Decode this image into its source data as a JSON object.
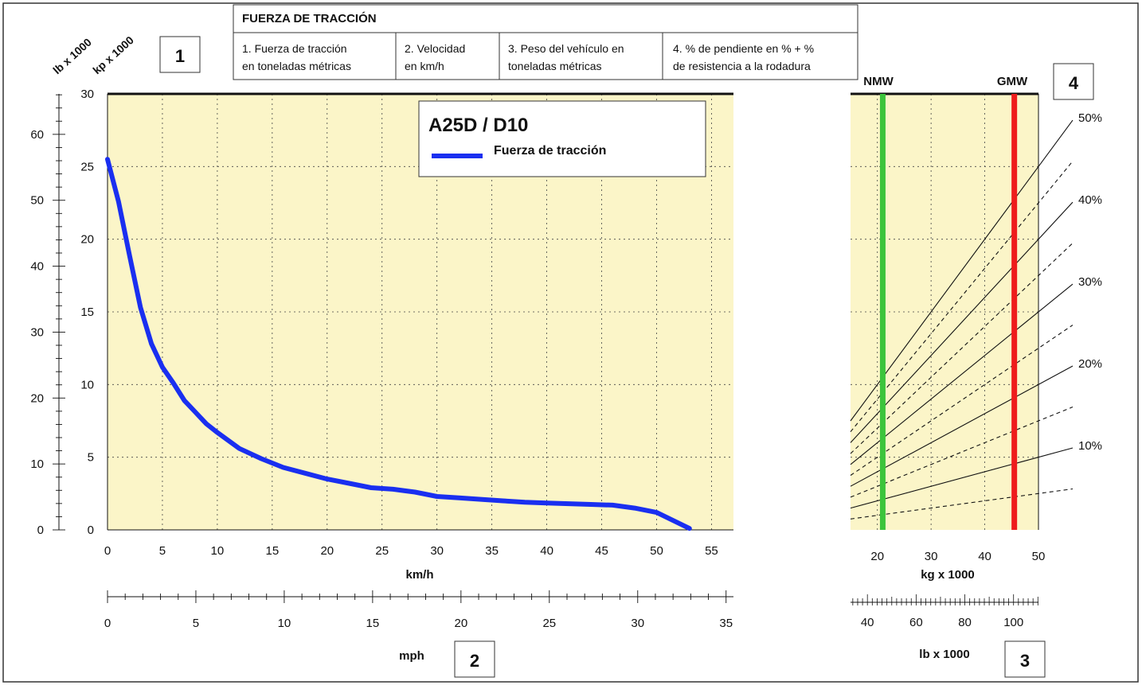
{
  "header": {
    "title": "FUERZA DE TRACCIÓN",
    "steps": [
      {
        "line1": "1. Fuerza de tracción",
        "line2": "en toneladas métricas"
      },
      {
        "line1": "2. Velocidad",
        "line2": "en km/h"
      },
      {
        "line1": "3. Peso del vehículo en",
        "line2": "toneladas métricas"
      },
      {
        "line1": "4. % de pendiente en % + %",
        "line2": "de resistencia a la rodadura"
      }
    ]
  },
  "badges": {
    "b1": "1",
    "b2": "2",
    "b3": "3",
    "b4": "4"
  },
  "axes_labels": {
    "lb": "lb x 1000",
    "kp": "kp x 1000",
    "kmh": "km/h",
    "mph": "mph",
    "kg": "kg x 1000",
    "lb_weight": "lb x 1000",
    "nmw": "NMW",
    "gmw": "GMW"
  },
  "legend": {
    "model": "A25D / D10",
    "series": "Fuerza de tracción",
    "color": "#1a2ff0"
  },
  "colors": {
    "background": "#fbf5c8",
    "nmw": "#3cc43c",
    "gmw": "#ee1c1c"
  },
  "chart_data": [
    {
      "type": "line",
      "title": "A25D / D10",
      "xlabel": "km/h",
      "ylabel": "kp x 1000",
      "xlim": [
        0,
        57
      ],
      "ylim": [
        0,
        30
      ],
      "x_ticks": [
        0,
        5,
        10,
        15,
        20,
        25,
        30,
        35,
        40,
        45,
        50,
        55
      ],
      "y_ticks": [
        0,
        5,
        10,
        15,
        20,
        25,
        30
      ],
      "y2_label": "lb x 1000",
      "y2_ticks": [
        0,
        10,
        20,
        30,
        40,
        50,
        60
      ],
      "x2_label": "mph",
      "x2_ticks": [
        0,
        5,
        10,
        15,
        20,
        25,
        30,
        35
      ],
      "grid": true,
      "legend": "top-right",
      "series": [
        {
          "name": "Fuerza de tracción",
          "x": [
            0,
            1,
            2,
            3,
            4,
            5,
            6,
            7,
            8,
            9,
            10,
            12,
            14,
            16,
            18,
            20,
            22,
            24,
            26,
            28,
            30,
            32,
            34,
            36,
            38,
            40,
            42,
            44,
            46,
            48,
            50,
            53
          ],
          "y": [
            25.5,
            22.6,
            18.9,
            15.3,
            12.8,
            11.2,
            10.1,
            8.9,
            8.1,
            7.3,
            6.7,
            5.6,
            4.9,
            4.3,
            3.9,
            3.5,
            3.2,
            2.9,
            2.8,
            2.6,
            2.3,
            2.2,
            2.1,
            2.0,
            1.9,
            1.85,
            1.8,
            1.75,
            1.7,
            1.5,
            1.2,
            0.1
          ]
        }
      ]
    },
    {
      "type": "line",
      "xlabel": "kg x 1000",
      "x_ticks": [
        20,
        30,
        40,
        50
      ],
      "xlim": [
        15,
        50
      ],
      "x2_label": "lb x 1000",
      "x2_ticks": [
        40,
        60,
        80,
        100
      ],
      "nmw": 21,
      "gmw": 45.5,
      "grade_labels": [
        "10%",
        "20%",
        "30%",
        "40%",
        "50%"
      ],
      "series": [
        {
          "grade": 5,
          "style": "dashed",
          "weight": [
            15,
            50
          ],
          "value": [
            0.75,
            2.5
          ]
        },
        {
          "grade": 10,
          "style": "solid",
          "weight": [
            15,
            50
          ],
          "value": [
            1.5,
            5.0
          ]
        },
        {
          "grade": 15,
          "style": "dashed",
          "weight": [
            15,
            50
          ],
          "value": [
            2.25,
            7.5
          ]
        },
        {
          "grade": 20,
          "style": "solid",
          "weight": [
            15,
            50
          ],
          "value": [
            3.0,
            10.0
          ]
        },
        {
          "grade": 25,
          "style": "dashed",
          "weight": [
            15,
            50
          ],
          "value": [
            3.75,
            12.5
          ]
        },
        {
          "grade": 30,
          "style": "solid",
          "weight": [
            15,
            50
          ],
          "value": [
            4.5,
            15.0
          ]
        },
        {
          "grade": 35,
          "style": "dashed",
          "weight": [
            15,
            50
          ],
          "value": [
            5.25,
            17.5
          ]
        },
        {
          "grade": 40,
          "style": "solid",
          "weight": [
            15,
            50
          ],
          "value": [
            6.0,
            20.0
          ]
        },
        {
          "grade": 45,
          "style": "dashed",
          "weight": [
            15,
            50
          ],
          "value": [
            6.75,
            22.5
          ]
        },
        {
          "grade": 50,
          "style": "solid",
          "weight": [
            15,
            50
          ],
          "value": [
            7.5,
            25.0
          ]
        }
      ]
    }
  ]
}
